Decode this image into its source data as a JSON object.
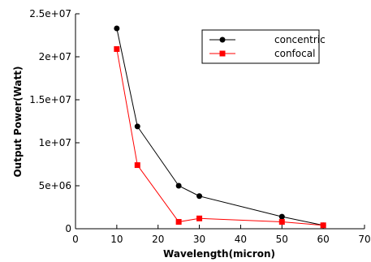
{
  "chart_data": {
    "type": "line",
    "title": "",
    "xlabel": "Wavelength(micron)",
    "ylabel": "Output Power(Watt)",
    "xlim": [
      0,
      70
    ],
    "ylim": [
      0,
      25000000
    ],
    "x_ticks": [
      "0",
      "10",
      "20",
      "30",
      "40",
      "50",
      "60",
      "70"
    ],
    "y_ticks": [
      "0",
      "5e+06",
      "1e+07",
      "1.5e+07",
      "2e+07",
      "2.5e+07"
    ],
    "grid": false,
    "legend_position": "top-right",
    "series": [
      {
        "name": "concentric",
        "color": "#000000",
        "marker": "circle",
        "x": [
          10,
          15,
          25,
          30,
          50,
          60
        ],
        "y": [
          23300000,
          11900000,
          5000000,
          3800000,
          1400000,
          400000
        ]
      },
      {
        "name": "confocal",
        "color": "#ff0000",
        "marker": "square",
        "x": [
          10,
          15,
          25,
          30,
          50,
          60
        ],
        "y": [
          20900000,
          7400000,
          800000,
          1200000,
          800000,
          400000
        ]
      }
    ]
  }
}
